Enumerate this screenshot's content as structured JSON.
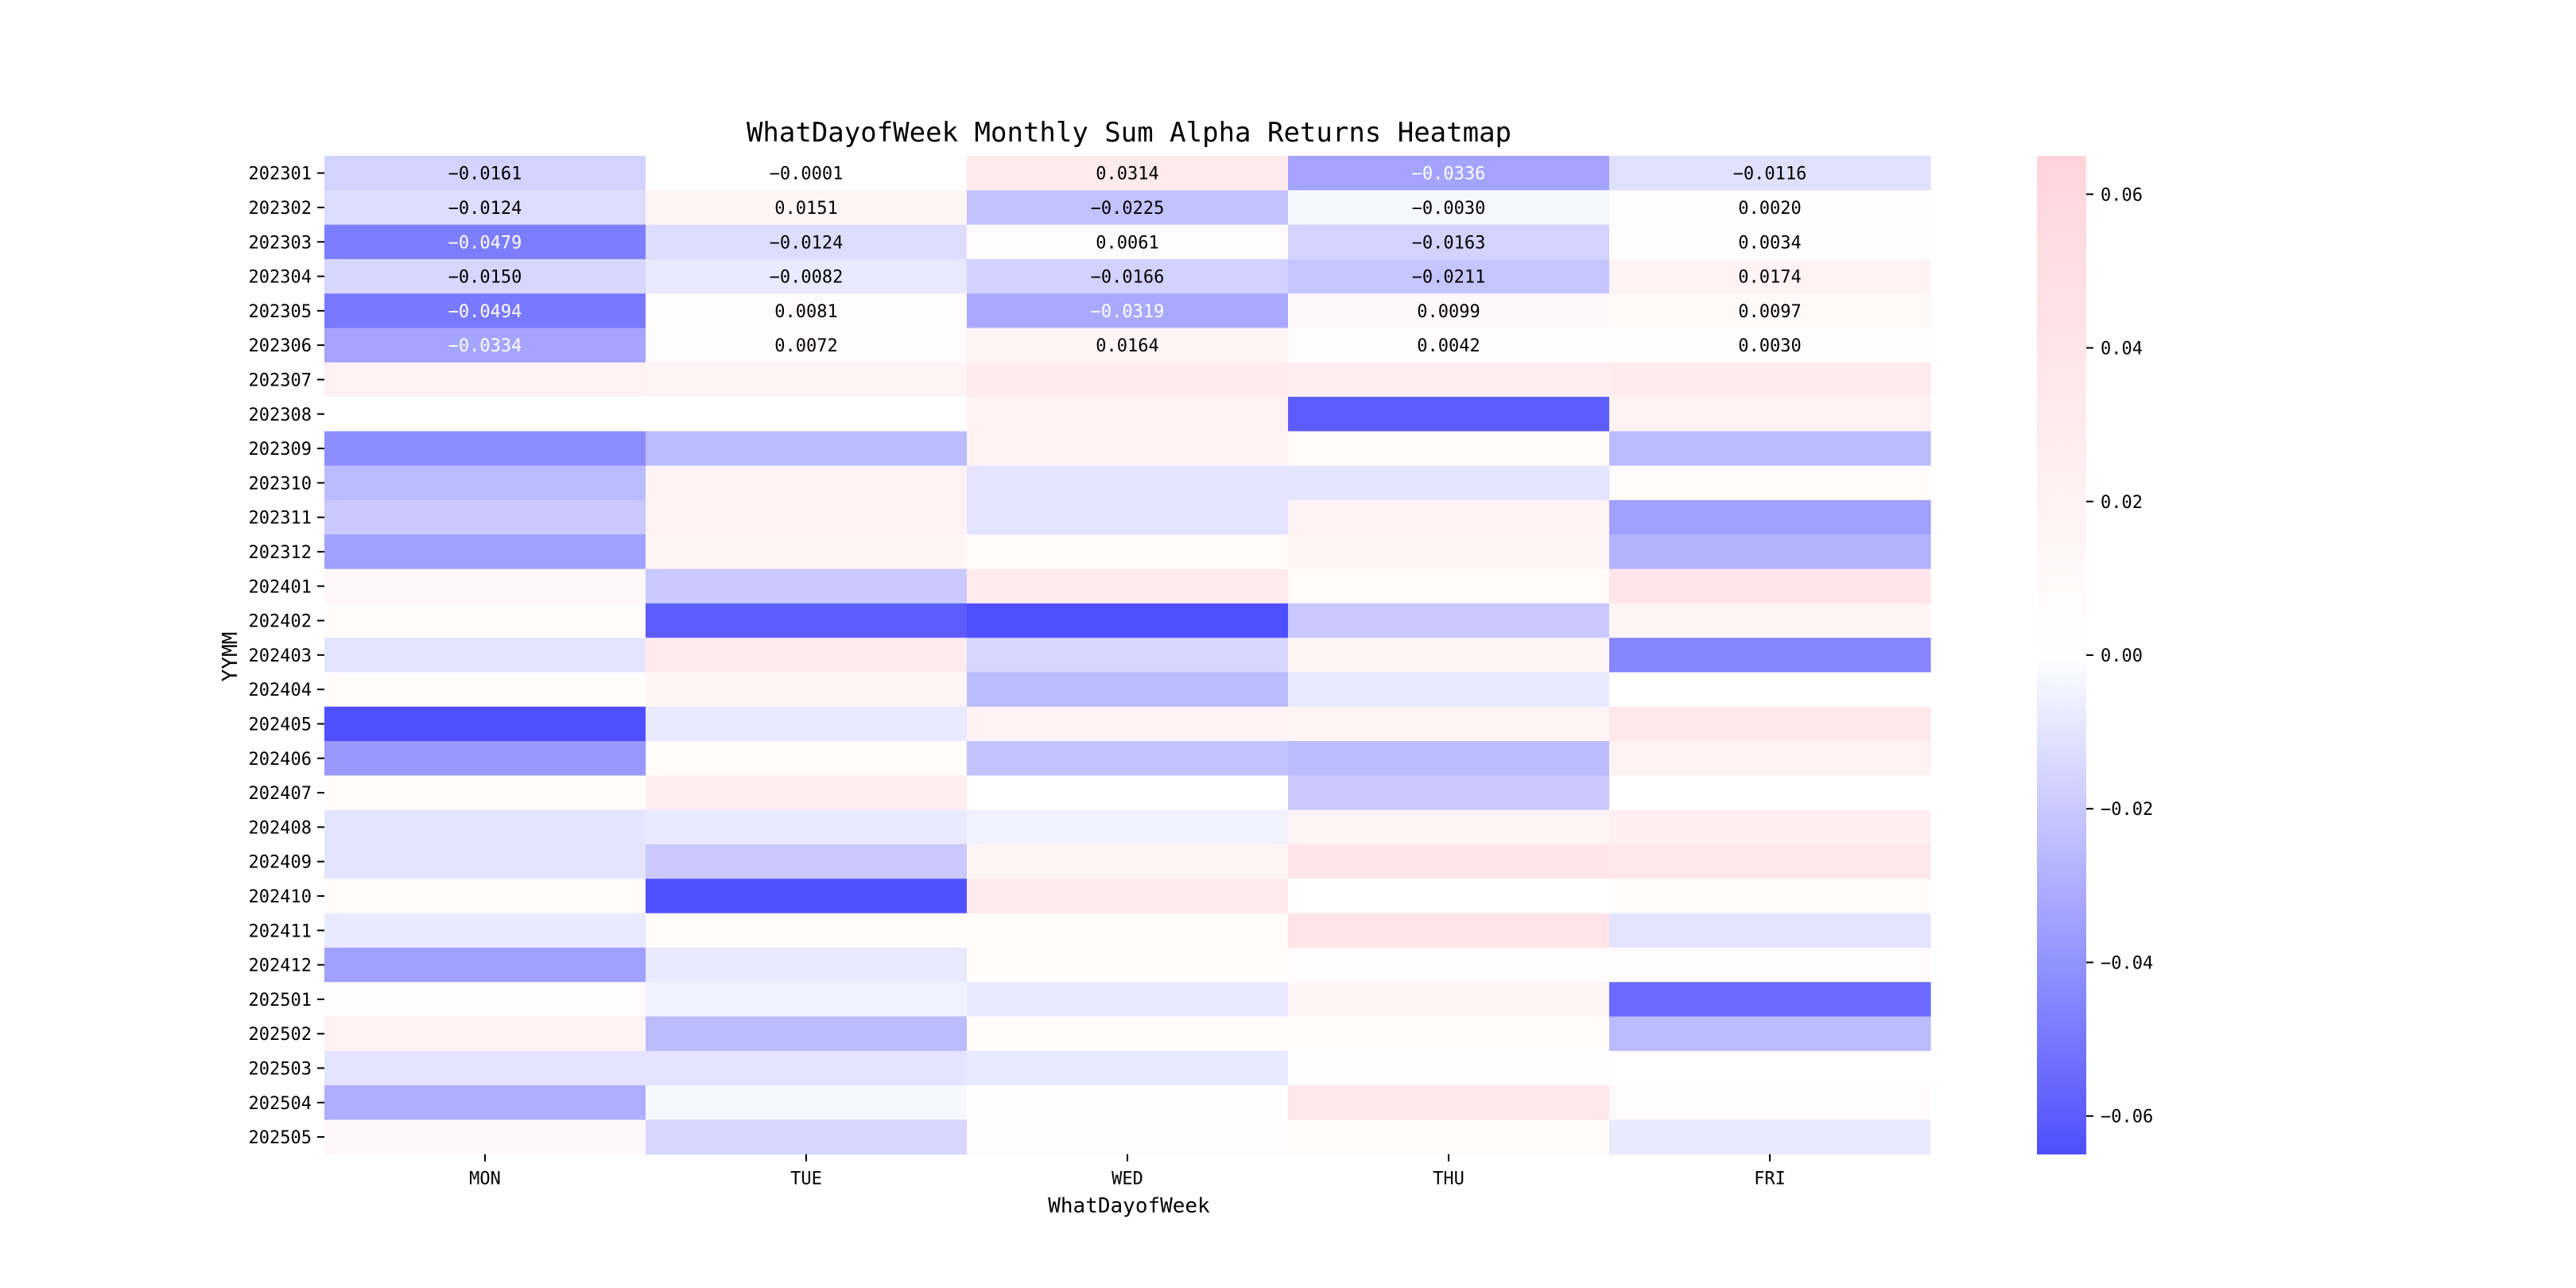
{
  "chart_data": {
    "type": "heatmap",
    "title": "WhatDayofWeek Monthly Sum Alpha Returns Heatmap",
    "xlabel": "WhatDayofWeek",
    "ylabel": "YYMM",
    "x_categories": [
      "MON",
      "TUE",
      "WED",
      "THU",
      "FRI"
    ],
    "y_categories": [
      "202301",
      "202302",
      "202303",
      "202304",
      "202305",
      "202306",
      "202307",
      "202308",
      "202309",
      "202310",
      "202311",
      "202312",
      "202401",
      "202402",
      "202403",
      "202404",
      "202405",
      "202406",
      "202407",
      "202408",
      "202409",
      "202410",
      "202411",
      "202412",
      "202501",
      "202502",
      "202503",
      "202504",
      "202505"
    ],
    "values": [
      [
        -0.0161,
        -0.0001,
        0.0314,
        -0.0336,
        -0.0116
      ],
      [
        -0.0124,
        0.0151,
        -0.0225,
        -0.003,
        0.002
      ],
      [
        -0.0479,
        -0.0124,
        0.0061,
        -0.0163,
        0.0034
      ],
      [
        -0.015,
        -0.0082,
        -0.0166,
        -0.0211,
        0.0174
      ],
      [
        -0.0494,
        0.0081,
        -0.0319,
        0.0099,
        0.0097
      ],
      [
        -0.0334,
        0.0072,
        0.0164,
        0.0042,
        0.003
      ],
      [
        0.02,
        0.015,
        0.03,
        0.025,
        0.03
      ],
      [
        0.0,
        0.0,
        0.02,
        -0.06,
        0.02
      ],
      [
        -0.042,
        -0.025,
        0.02,
        0.005,
        -0.025
      ],
      [
        -0.025,
        0.02,
        -0.01,
        -0.01,
        0.005
      ],
      [
        -0.02,
        0.02,
        -0.01,
        0.02,
        -0.035
      ],
      [
        -0.035,
        0.015,
        0.005,
        0.015,
        -0.028
      ],
      [
        0.01,
        -0.02,
        0.03,
        0.005,
        0.04
      ],
      [
        0.005,
        -0.06,
        -0.065,
        -0.02,
        0.015
      ],
      [
        -0.01,
        0.03,
        -0.015,
        0.015,
        -0.045
      ],
      [
        0.005,
        0.015,
        -0.025,
        -0.008,
        0.0
      ],
      [
        -0.065,
        -0.008,
        0.02,
        0.015,
        0.035
      ],
      [
        -0.038,
        0.005,
        -0.022,
        -0.025,
        0.02
      ],
      [
        0.005,
        0.025,
        0.0,
        -0.02,
        0.0
      ],
      [
        -0.01,
        -0.008,
        -0.005,
        0.015,
        0.025
      ],
      [
        -0.01,
        -0.02,
        0.015,
        0.04,
        0.035
      ],
      [
        0.005,
        -0.065,
        0.03,
        0.0,
        0.005
      ],
      [
        -0.008,
        0.005,
        0.005,
        0.04,
        -0.01
      ],
      [
        -0.035,
        -0.008,
        0.005,
        0.008,
        0.008
      ],
      [
        0.008,
        -0.005,
        -0.008,
        0.015,
        -0.055
      ],
      [
        0.02,
        -0.025,
        0.005,
        0.005,
        -0.025
      ],
      [
        -0.01,
        -0.01,
        -0.008,
        0.003,
        0.0
      ],
      [
        -0.03,
        -0.003,
        0.003,
        0.035,
        0.008
      ],
      [
        0.01,
        -0.015,
        0.008,
        0.005,
        -0.008
      ]
    ],
    "annotated_rows": 6,
    "value_range": [
      -0.065,
      0.065
    ],
    "colormap": {
      "low": "#4f4fff",
      "mid": "#ffffff",
      "high": "#ffd4dc"
    },
    "colorbar_ticks": [
      0.06,
      0.04,
      0.02,
      0.0,
      -0.02,
      -0.04,
      -0.06
    ],
    "colorbar_tick_labels": [
      "0.06",
      "0.04",
      "0.02",
      "0.00",
      "−0.02",
      "−0.04",
      "−0.06"
    ]
  }
}
